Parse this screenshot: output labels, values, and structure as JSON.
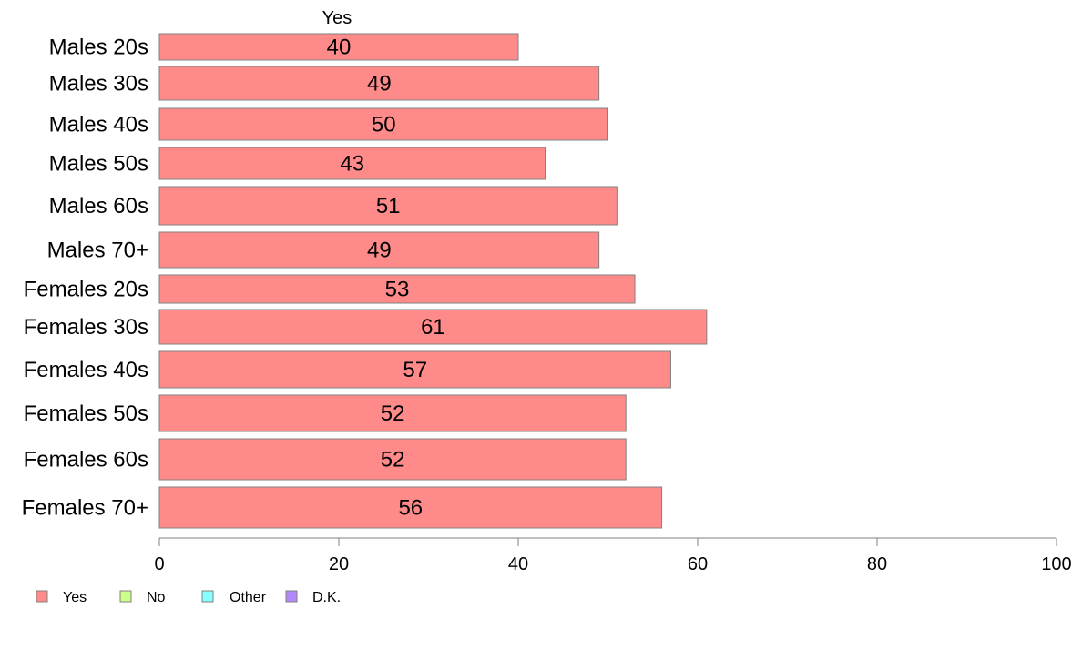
{
  "chart_data": {
    "type": "bar",
    "orientation": "horizontal",
    "column_title": "Yes",
    "categories": [
      "Males 20s",
      "Males 30s",
      "Males 40s",
      "Males 50s",
      "Males 60s",
      "Males 70+",
      "Females 20s",
      "Females 30s",
      "Females 40s",
      "Females 50s",
      "Females 60s",
      "Females 70+"
    ],
    "series": [
      {
        "name": "Yes",
        "values": [
          40,
          49,
          50,
          43,
          51,
          49,
          53,
          61,
          57,
          52,
          52,
          56
        ],
        "labels": [
          "40",
          "49",
          "50",
          "43",
          "51",
          "49",
          "53",
          "61",
          "57",
          "52",
          "52",
          "56"
        ]
      }
    ],
    "xlim": [
      0,
      100
    ],
    "xticks": [
      "0",
      "20",
      "40",
      "60",
      "80",
      "100"
    ],
    "legend": [
      "Yes",
      "No",
      "Other",
      "D.K."
    ],
    "legend_placement": "bottom-left",
    "grid": false
  },
  "colors": {
    "Yes": "#ff8a8a",
    "No": "#ccff88",
    "Other": "#88ffff",
    "D.K.": "#b388ff",
    "bar_border": "#808080",
    "axis": "#808080"
  }
}
